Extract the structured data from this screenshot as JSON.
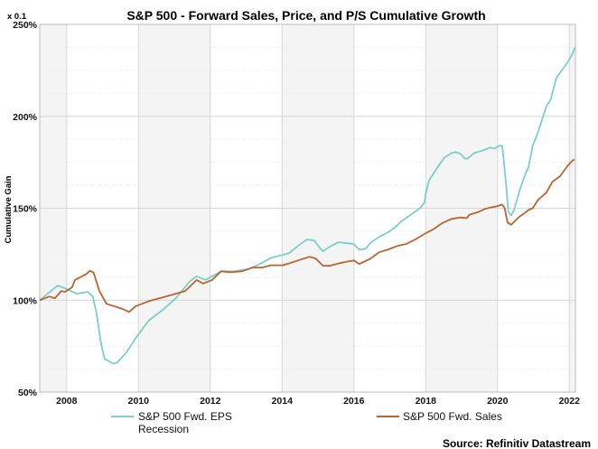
{
  "chart_data": {
    "type": "line",
    "title": "S&P 500 - Forward Sales, Price, and P/S Cumulative Growth",
    "xlabel": "",
    "ylabel": "Cumulative Gain",
    "y_scale_note": "x 0.1",
    "xlim": [
      2007.25,
      2022.17
    ],
    "ylim": [
      50,
      250
    ],
    "x_ticks": [
      2008,
      2010,
      2012,
      2014,
      2016,
      2018,
      2020,
      2022
    ],
    "x_tick_labels": [
      "2008",
      "2010",
      "2012",
      "2014",
      "2016",
      "2018",
      "2020",
      "2022"
    ],
    "y_ticks": [
      50,
      100,
      150,
      200,
      250
    ],
    "y_tick_labels": [
      "50%",
      "100%",
      "150%",
      "200%",
      "250%"
    ],
    "grid": true,
    "shaded_bands": [
      [
        2007.25,
        2008
      ],
      [
        2010,
        2012
      ],
      [
        2014,
        2016
      ],
      [
        2018,
        2020
      ],
      [
        2022,
        2022.17
      ]
    ],
    "legend_placement": "bottom",
    "legend": [
      {
        "label": "S&P 500 Fwd. EPS",
        "color": "#7BCFCB",
        "kind": "line"
      },
      {
        "label": "Recession",
        "color": "#F4F4F4",
        "kind": "area"
      },
      {
        "label": "S&P 500 Fwd. Sales",
        "color": "#B9652F",
        "kind": "line"
      }
    ],
    "source": "Source: Refinitiv Datastream",
    "series": [
      {
        "name": "S&P 500 Fwd. EPS",
        "color": "#7BCFCB",
        "points": [
          [
            2007.25,
            100
          ],
          [
            2007.75,
            108
          ],
          [
            2008.0,
            106
          ],
          [
            2008.28,
            103.5
          ],
          [
            2008.58,
            104.5
          ],
          [
            2008.73,
            102
          ],
          [
            2008.83,
            93
          ],
          [
            2008.96,
            76
          ],
          [
            2009.06,
            68
          ],
          [
            2009.16,
            67
          ],
          [
            2009.28,
            65.5
          ],
          [
            2009.41,
            66
          ],
          [
            2009.66,
            71.5
          ],
          [
            2009.91,
            79
          ],
          [
            2010.29,
            89
          ],
          [
            2010.67,
            94.6
          ],
          [
            2011.04,
            101
          ],
          [
            2011.42,
            110
          ],
          [
            2011.62,
            113
          ],
          [
            2011.87,
            111
          ],
          [
            2012.3,
            115.7
          ],
          [
            2012.68,
            115.7
          ],
          [
            2013.06,
            117
          ],
          [
            2013.31,
            119
          ],
          [
            2013.69,
            123
          ],
          [
            2014.01,
            124.6
          ],
          [
            2014.19,
            125.5
          ],
          [
            2014.44,
            129.5
          ],
          [
            2014.69,
            133
          ],
          [
            2014.89,
            132.5
          ],
          [
            2015.07,
            128
          ],
          [
            2015.14,
            126.5
          ],
          [
            2015.32,
            129
          ],
          [
            2015.57,
            131.5
          ],
          [
            2015.82,
            131
          ],
          [
            2016.0,
            130.5
          ],
          [
            2016.15,
            127.5
          ],
          [
            2016.33,
            128
          ],
          [
            2016.45,
            131
          ],
          [
            2016.7,
            134.4
          ],
          [
            2016.96,
            137
          ],
          [
            2017.13,
            139.4
          ],
          [
            2017.33,
            143
          ],
          [
            2017.58,
            146.4
          ],
          [
            2017.84,
            150
          ],
          [
            2017.96,
            153
          ],
          [
            2018.01,
            158.8
          ],
          [
            2018.09,
            165
          ],
          [
            2018.34,
            172.6
          ],
          [
            2018.52,
            177.5
          ],
          [
            2018.72,
            180
          ],
          [
            2018.84,
            180.5
          ],
          [
            2018.97,
            179.6
          ],
          [
            2019.09,
            177
          ],
          [
            2019.17,
            177
          ],
          [
            2019.35,
            180
          ],
          [
            2019.6,
            181.5
          ],
          [
            2019.8,
            183
          ],
          [
            2019.92,
            182.5
          ],
          [
            2020.05,
            184
          ],
          [
            2020.13,
            184
          ],
          [
            2020.18,
            175
          ],
          [
            2020.25,
            160.5
          ],
          [
            2020.3,
            148
          ],
          [
            2020.38,
            146
          ],
          [
            2020.45,
            148.5
          ],
          [
            2020.63,
            160.5
          ],
          [
            2020.78,
            169
          ],
          [
            2020.86,
            172
          ],
          [
            2020.98,
            184
          ],
          [
            2021.13,
            191.5
          ],
          [
            2021.36,
            205.5
          ],
          [
            2021.48,
            209
          ],
          [
            2021.64,
            221
          ],
          [
            2021.79,
            225
          ],
          [
            2021.94,
            229
          ],
          [
            2022.09,
            234
          ],
          [
            2022.16,
            237.5
          ]
        ]
      },
      {
        "name": "S&P 500 Fwd. Sales",
        "color": "#B9652F",
        "points": [
          [
            2007.25,
            100
          ],
          [
            2007.52,
            102
          ],
          [
            2007.67,
            101
          ],
          [
            2007.85,
            105
          ],
          [
            2007.95,
            104.5
          ],
          [
            2008.15,
            107
          ],
          [
            2008.23,
            111
          ],
          [
            2008.53,
            114
          ],
          [
            2008.65,
            116
          ],
          [
            2008.75,
            115
          ],
          [
            2008.91,
            105
          ],
          [
            2009.11,
            98
          ],
          [
            2009.36,
            96.5
          ],
          [
            2009.58,
            95
          ],
          [
            2009.74,
            93.6
          ],
          [
            2009.91,
            96.6
          ],
          [
            2010.29,
            99.5
          ],
          [
            2010.67,
            101.5
          ],
          [
            2011.04,
            103.5
          ],
          [
            2011.3,
            105
          ],
          [
            2011.62,
            111
          ],
          [
            2011.8,
            109
          ],
          [
            2012.05,
            111
          ],
          [
            2012.3,
            115.7
          ],
          [
            2012.55,
            115.2
          ],
          [
            2012.88,
            115.7
          ],
          [
            2013.18,
            117.7
          ],
          [
            2013.43,
            117.7
          ],
          [
            2013.69,
            119
          ],
          [
            2014.01,
            119
          ],
          [
            2014.19,
            120
          ],
          [
            2014.44,
            121.6
          ],
          [
            2014.77,
            123.6
          ],
          [
            2014.94,
            122.6
          ],
          [
            2015.14,
            118.7
          ],
          [
            2015.32,
            118.7
          ],
          [
            2015.57,
            120
          ],
          [
            2015.82,
            121
          ],
          [
            2016.0,
            121.6
          ],
          [
            2016.15,
            119.7
          ],
          [
            2016.45,
            122.5
          ],
          [
            2016.7,
            126
          ],
          [
            2016.96,
            127.6
          ],
          [
            2017.21,
            129.5
          ],
          [
            2017.46,
            130.6
          ],
          [
            2017.71,
            133
          ],
          [
            2017.96,
            136
          ],
          [
            2018.21,
            138.5
          ],
          [
            2018.47,
            142
          ],
          [
            2018.72,
            144.2
          ],
          [
            2018.97,
            145
          ],
          [
            2019.14,
            144.6
          ],
          [
            2019.22,
            146.5
          ],
          [
            2019.47,
            148
          ],
          [
            2019.65,
            149.6
          ],
          [
            2019.85,
            150.6
          ],
          [
            2019.97,
            151
          ],
          [
            2020.13,
            152
          ],
          [
            2020.2,
            150
          ],
          [
            2020.28,
            142.2
          ],
          [
            2020.38,
            141
          ],
          [
            2020.6,
            145.3
          ],
          [
            2020.73,
            147
          ],
          [
            2020.86,
            149
          ],
          [
            2020.98,
            150
          ],
          [
            2021.13,
            154.6
          ],
          [
            2021.36,
            158.5
          ],
          [
            2021.53,
            164.4
          ],
          [
            2021.74,
            167.4
          ],
          [
            2021.94,
            172.8
          ],
          [
            2022.09,
            176
          ],
          [
            2022.14,
            176.5
          ]
        ]
      }
    ]
  }
}
